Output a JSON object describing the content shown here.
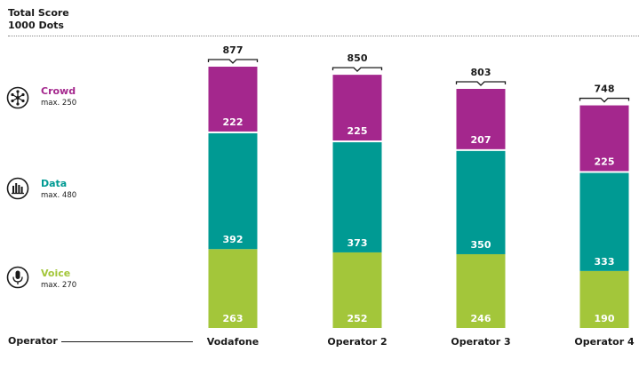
{
  "header": {
    "line1": "Total Score",
    "line2": "1000 Dots"
  },
  "legend": [
    {
      "name": "Crowd",
      "max": "max. 250",
      "color": "#a4278d",
      "icon": "crowd-network-icon"
    },
    {
      "name": "Data",
      "max": "max. 480",
      "color": "#009a93",
      "icon": "data-bars-icon"
    },
    {
      "name": "Voice",
      "max": "max. 270",
      "color": "#a3c63a",
      "icon": "microphone-icon"
    }
  ],
  "axis_label": "Operator",
  "chart_data": {
    "type": "bar",
    "stacked": true,
    "categories": [
      "Vodafone",
      "Operator 2",
      "Operator 3",
      "Operator 4"
    ],
    "series": [
      {
        "name": "Voice",
        "color": "#a3c63a",
        "values": [
          263,
          252,
          246,
          190
        ]
      },
      {
        "name": "Data",
        "color": "#009a93",
        "values": [
          392,
          373,
          350,
          333
        ]
      },
      {
        "name": "Crowd",
        "color": "#a4278d",
        "values": [
          222,
          225,
          207,
          225
        ]
      }
    ],
    "totals": [
      877,
      850,
      803,
      748
    ],
    "title": "Total Score",
    "subtitle": "1000 Dots",
    "xlabel": "Operator",
    "ylim": [
      0,
      1000
    ]
  }
}
